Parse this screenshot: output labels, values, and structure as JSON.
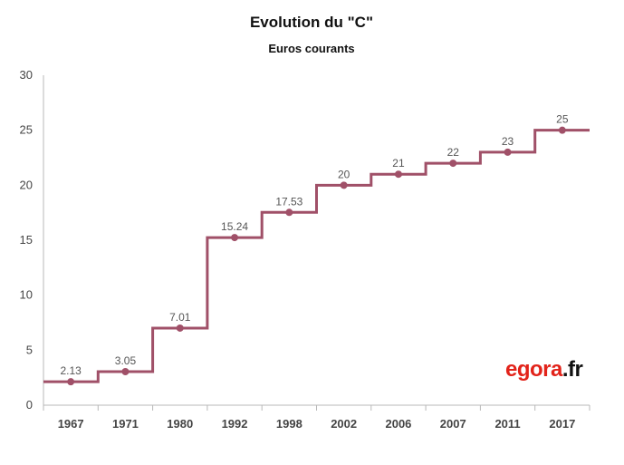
{
  "chart_data": {
    "type": "line",
    "step": true,
    "title": "Evolution du \"C\"",
    "subtitle": "Euros courants",
    "categories": [
      "1967",
      "1971",
      "1980",
      "1992",
      "1998",
      "2002",
      "2006",
      "2007",
      "2011",
      "2017"
    ],
    "values": [
      2.13,
      3.05,
      7.01,
      15.24,
      17.53,
      20,
      21,
      22,
      23,
      25
    ],
    "data_labels": [
      "2.13",
      "3.05",
      "7.01",
      "15.24",
      "17.53",
      "20",
      "21",
      "22",
      "23",
      "25"
    ],
    "ylim": [
      0,
      30
    ],
    "yticks": [
      0,
      5,
      10,
      15,
      20,
      25,
      30
    ],
    "grid": false,
    "color": "#a05068"
  },
  "logo": {
    "main": "egora",
    "dot": ".",
    "tld": "fr"
  }
}
